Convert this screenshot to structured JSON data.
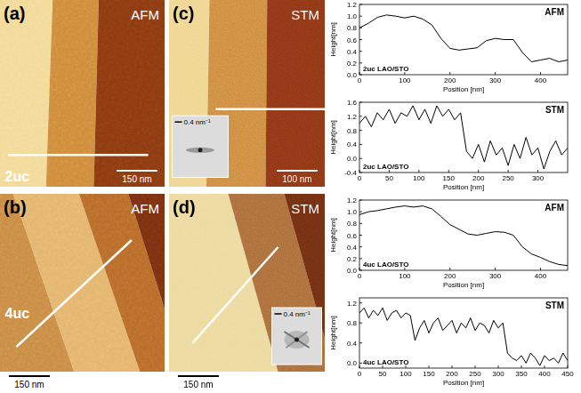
{
  "chart_data": [
    {
      "type": "line",
      "title": "AFM",
      "annotation": "2uc LAO/STO",
      "x_label": "Position [nm]",
      "y_label": "Height[nm]",
      "color": "#000000",
      "x": [
        0,
        20,
        40,
        60,
        80,
        100,
        120,
        140,
        160,
        180,
        200,
        220,
        240,
        260,
        280,
        300,
        320,
        340,
        360,
        380,
        400,
        420,
        440,
        460
      ],
      "values": [
        0.8,
        0.88,
        0.98,
        1.02,
        1.0,
        0.97,
        1.0,
        0.95,
        0.85,
        0.62,
        0.45,
        0.42,
        0.44,
        0.46,
        0.58,
        0.62,
        0.6,
        0.6,
        0.38,
        0.22,
        0.25,
        0.28,
        0.22,
        0.25
      ],
      "xlim": [
        0,
        460
      ],
      "xticks": [
        0,
        100,
        200,
        300,
        400
      ],
      "ylim": [
        0,
        1.2
      ],
      "yticks": [
        {
          "value": 0,
          "label": "0.0"
        },
        0.2,
        0.4,
        0.6,
        0.8,
        {
          "value": 1,
          "label": "1.0"
        },
        1.2
      ]
    },
    {
      "type": "line",
      "title": "STM",
      "annotation": "2uc LAO/STO",
      "x_label": "Position [nm]",
      "y_label": "Height[nm]",
      "color": "#000000",
      "x": [
        0,
        10,
        20,
        30,
        40,
        50,
        60,
        70,
        80,
        90,
        100,
        110,
        120,
        130,
        140,
        150,
        160,
        170,
        180,
        190,
        200,
        210,
        220,
        230,
        240,
        250,
        260,
        270,
        280,
        290,
        300,
        310,
        320,
        330,
        340,
        350
      ],
      "values": [
        1.0,
        1.2,
        0.9,
        1.3,
        1.1,
        1.4,
        1.0,
        1.3,
        1.2,
        1.5,
        1.1,
        1.4,
        1.0,
        1.5,
        1.2,
        1.4,
        1.1,
        1.3,
        0.2,
        0.0,
        0.4,
        -0.1,
        0.5,
        0.1,
        0.3,
        -0.2,
        0.4,
        0.0,
        0.6,
        0.1,
        0.3,
        -0.3,
        0.2,
        0.5,
        0.1,
        0.3
      ],
      "xlim": [
        0,
        350
      ],
      "xticks": [
        0,
        50,
        100,
        150,
        200,
        250,
        300
      ],
      "ylim": [
        -0.4,
        1.6
      ],
      "yticks": [
        -0.4,
        {
          "value": 0,
          "label": "0.0"
        },
        0.4,
        0.8,
        1.2,
        1.6
      ]
    },
    {
      "type": "line",
      "title": "AFM",
      "annotation": "4uc LAO/STO",
      "x_label": "Position [nm]",
      "y_label": "Height[nm]",
      "color": "#000000",
      "x": [
        0,
        20,
        40,
        60,
        80,
        100,
        120,
        140,
        160,
        180,
        200,
        220,
        240,
        260,
        280,
        300,
        320,
        340,
        360,
        380,
        400,
        420,
        440,
        460
      ],
      "values": [
        0.95,
        1.0,
        1.02,
        1.05,
        1.08,
        1.1,
        1.08,
        1.1,
        1.05,
        0.92,
        0.78,
        0.7,
        0.62,
        0.6,
        0.63,
        0.66,
        0.65,
        0.6,
        0.4,
        0.28,
        0.22,
        0.15,
        0.1,
        0.08
      ],
      "xlim": [
        0,
        460
      ],
      "xticks": [
        0,
        100,
        200,
        300,
        400
      ],
      "ylim": [
        0,
        1.2
      ],
      "yticks": [
        {
          "value": 0,
          "label": "0.0"
        },
        0.2,
        0.4,
        0.6,
        0.8,
        {
          "value": 1,
          "label": "1.0"
        },
        1.2
      ]
    },
    {
      "type": "line",
      "title": "STM",
      "annotation": "4uc LAO/STO",
      "x_label": "Position [nm]",
      "y_label": "Height[nm]",
      "color": "#000000",
      "x": [
        0,
        10,
        20,
        30,
        40,
        50,
        60,
        70,
        80,
        90,
        100,
        110,
        120,
        130,
        140,
        150,
        160,
        170,
        180,
        190,
        200,
        210,
        220,
        230,
        240,
        250,
        260,
        270,
        280,
        290,
        300,
        310,
        320,
        330,
        340,
        350,
        360,
        370,
        380,
        390,
        400,
        410,
        420,
        430,
        440,
        450
      ],
      "values": [
        1.0,
        1.1,
        0.9,
        1.05,
        0.95,
        1.1,
        0.85,
        1.0,
        1.05,
        0.9,
        1.0,
        0.95,
        0.45,
        0.7,
        0.85,
        0.6,
        0.8,
        0.9,
        0.65,
        0.75,
        0.85,
        0.6,
        0.8,
        0.7,
        0.9,
        0.65,
        0.8,
        0.75,
        0.6,
        0.85,
        0.7,
        0.8,
        0.2,
        0.1,
        0.05,
        0.15,
        0.0,
        0.2,
        0.1,
        -0.05,
        0.15,
        0.05,
        0.1,
        0.0,
        0.2,
        0.05
      ],
      "xlim": [
        0,
        450
      ],
      "xticks": [
        0,
        50,
        100,
        150,
        200,
        250,
        300,
        350,
        400,
        450
      ],
      "ylim": [
        -0.1,
        1.3
      ],
      "yticks": [
        {
          "value": 0,
          "label": "0.0"
        },
        0.4,
        0.8,
        1.2
      ]
    }
  ],
  "panels": [
    {
      "letter": "(a)",
      "technique": "AFM",
      "thickness": "2uc",
      "scale_bar": "150 nm"
    },
    {
      "letter": "(c)",
      "technique": "STM",
      "scale_bar": "100 nm",
      "inset_scale": "0.4 nm⁻¹"
    },
    {
      "letter": "(b)",
      "technique": "AFM",
      "thickness": "4uc",
      "scale_bar": "150 nm"
    },
    {
      "letter": "(d)",
      "technique": "STM",
      "scale_bar": "150 nm",
      "inset_scale": "0.4 nm⁻¹"
    }
  ]
}
